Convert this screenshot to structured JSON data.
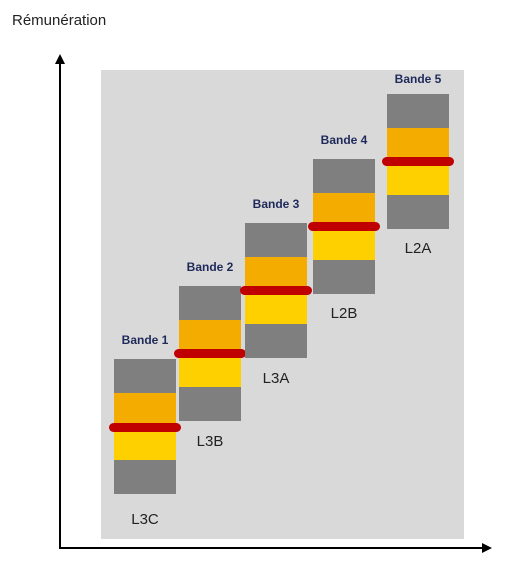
{
  "axis": {
    "y_label": "Rémunération"
  },
  "bands": [
    {
      "title": "Bande 1",
      "level": "L3C"
    },
    {
      "title": "Bande 2",
      "level": "L3B"
    },
    {
      "title": "Bande 3",
      "level": "L3A"
    },
    {
      "title": "Bande 4",
      "level": "L2B"
    },
    {
      "title": "Bande 5",
      "level": "L2A"
    }
  ],
  "colors": {
    "background": "#d9d9d9",
    "grey": "#7f7f7f",
    "orange": "#f5ac00",
    "yellow": "#ffd000",
    "marker": "#c00000",
    "title": "#1f2a5a"
  }
}
